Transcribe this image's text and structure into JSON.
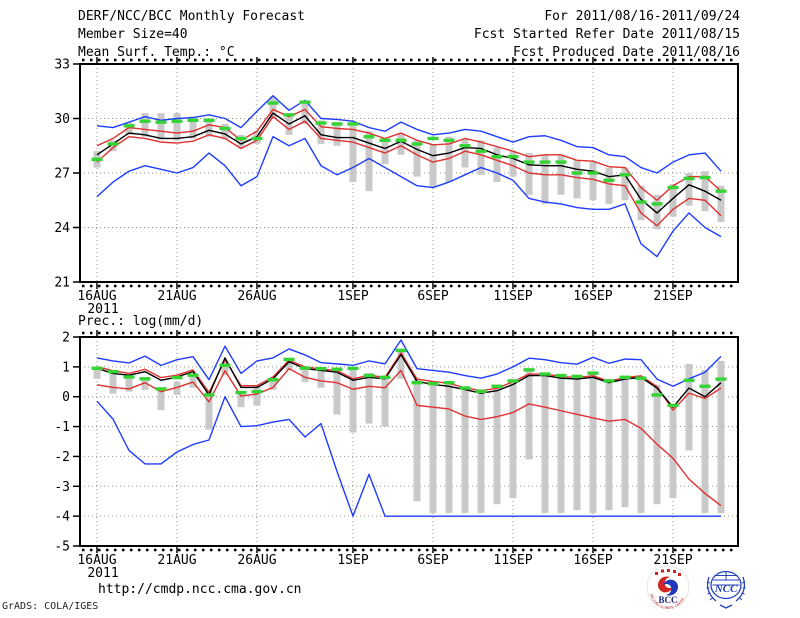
{
  "header": {
    "title": "DERF/NCC/BCC Monthly Forecast",
    "member_size": "Member Size=40",
    "for_range": "For 2011/08/16-2011/09/24",
    "fcst_started": "Fcst Started Refer Date 2011/08/15",
    "fcst_produced": "Fcst Produced Date 2011/08/16"
  },
  "footer": {
    "url": "http://cmdp.ncc.cma.gov.cn",
    "grads_credit": "GrADS: COLA/IGES",
    "bcc_logo_text": "BCC",
    "ncc_logo_text": "NCC",
    "bcc_ring_text": "BEIJING CLIMATE CENTER"
  },
  "chart_data": [
    {
      "name": "temperature",
      "type": "line",
      "title": "Mean Surf. Temp.: °C",
      "xlabel": "",
      "ylabel": "",
      "ylim": [
        21,
        33
      ],
      "yticks": [
        21,
        24,
        27,
        30,
        33
      ],
      "grid": true,
      "legend": "none",
      "year_label": "2011",
      "xtick_labels": [
        "16AUG",
        "21AUG",
        "26AUG",
        "1SEP",
        "6SEP",
        "11SEP",
        "16SEP",
        "21SEP"
      ],
      "xtick_days": [
        0,
        5,
        10,
        16,
        21,
        26,
        31,
        36
      ],
      "x": [
        "16AUG",
        "17AUG",
        "18AUG",
        "19AUG",
        "20AUG",
        "21AUG",
        "22AUG",
        "23AUG",
        "24AUG",
        "25AUG",
        "26AUG",
        "27AUG",
        "28AUG",
        "29AUG",
        "30AUG",
        "31AUG",
        "1SEP",
        "2SEP",
        "3SEP",
        "4SEP",
        "5SEP",
        "6SEP",
        "7SEP",
        "8SEP",
        "9SEP",
        "10SEP",
        "11SEP",
        "12SEP",
        "13SEP",
        "14SEP",
        "15SEP",
        "16SEP",
        "17SEP",
        "18SEP",
        "19SEP",
        "20SEP",
        "21SEP",
        "22SEP",
        "23SEP",
        "24SEP"
      ],
      "series": [
        {
          "name": "blue-upper-bound",
          "style": "line",
          "color": "#1e3cff",
          "values": [
            29.6,
            29.5,
            29.8,
            30.1,
            29.9,
            30.0,
            30.05,
            30.2,
            30.0,
            29.5,
            30.4,
            31.25,
            30.45,
            31.0,
            30.0,
            29.95,
            29.85,
            29.5,
            29.3,
            29.8,
            29.4,
            29.1,
            29.2,
            29.4,
            29.3,
            29.0,
            28.7,
            29.0,
            29.05,
            28.8,
            28.45,
            28.4,
            28.0,
            27.9,
            27.3,
            27.0,
            27.6,
            28.0,
            28.1,
            27.1
          ]
        },
        {
          "name": "blue-lower-bound",
          "style": "line",
          "color": "#1e3cff",
          "values": [
            25.7,
            26.5,
            27.1,
            27.4,
            27.2,
            27.0,
            27.3,
            28.1,
            27.4,
            26.3,
            26.8,
            29.0,
            28.5,
            28.9,
            27.4,
            26.9,
            27.3,
            27.8,
            27.3,
            26.8,
            26.3,
            26.2,
            26.5,
            26.9,
            27.3,
            27.0,
            26.6,
            25.6,
            25.4,
            25.3,
            25.1,
            25.0,
            25.0,
            25.3,
            23.1,
            22.4,
            23.8,
            24.8,
            24.0,
            23.5
          ]
        },
        {
          "name": "red-upper-band",
          "style": "line",
          "color": "#e03030",
          "values": [
            28.5,
            28.9,
            29.5,
            29.4,
            29.3,
            29.2,
            29.3,
            29.65,
            29.5,
            28.8,
            29.3,
            30.5,
            30.1,
            30.5,
            29.55,
            29.45,
            29.4,
            29.2,
            28.9,
            29.2,
            28.8,
            28.55,
            28.6,
            28.9,
            28.7,
            28.45,
            28.2,
            27.9,
            28.0,
            28.0,
            27.7,
            27.65,
            27.35,
            27.3,
            26.2,
            25.5,
            26.3,
            26.8,
            26.8,
            26.0
          ]
        },
        {
          "name": "red-lower-band",
          "style": "line",
          "color": "#e03030",
          "values": [
            27.6,
            28.4,
            29.0,
            28.9,
            28.7,
            28.65,
            28.75,
            29.1,
            28.9,
            28.35,
            28.8,
            30.1,
            29.4,
            29.85,
            28.9,
            28.8,
            28.7,
            28.4,
            28.1,
            28.5,
            28.0,
            27.6,
            27.8,
            28.2,
            28.0,
            27.7,
            27.4,
            27.0,
            26.9,
            26.9,
            26.75,
            26.65,
            26.4,
            26.3,
            24.8,
            24.1,
            25.0,
            25.6,
            25.5,
            24.65
          ]
        },
        {
          "name": "black-central-line",
          "style": "line",
          "color": "#000000",
          "values": [
            28.0,
            28.6,
            29.2,
            29.1,
            28.9,
            28.9,
            29.0,
            29.35,
            29.15,
            28.6,
            29.0,
            30.3,
            29.7,
            30.15,
            29.1,
            28.95,
            28.95,
            28.65,
            28.35,
            28.75,
            28.3,
            27.95,
            28.1,
            28.4,
            28.35,
            28.0,
            27.8,
            27.45,
            27.4,
            27.4,
            27.2,
            27.1,
            26.8,
            26.9,
            25.55,
            24.8,
            25.6,
            26.35,
            26.0,
            25.5
          ]
        },
        {
          "name": "green-dashes",
          "style": "dash",
          "color": "#35d435",
          "values": [
            27.75,
            28.6,
            29.6,
            29.85,
            29.8,
            29.85,
            29.9,
            29.9,
            29.45,
            28.9,
            28.9,
            30.85,
            30.2,
            30.9,
            29.75,
            29.7,
            29.7,
            29.0,
            28.8,
            28.8,
            28.6,
            28.9,
            28.8,
            28.5,
            28.2,
            27.9,
            27.9,
            27.6,
            27.6,
            27.6,
            27.0,
            27.0,
            26.6,
            26.9,
            25.4,
            25.3,
            26.2,
            26.7,
            26.75,
            26.0
          ]
        },
        {
          "name": "gray-spread-bars",
          "style": "bars",
          "color": "#c9c9c9",
          "top": [
            28.2,
            28.8,
            29.8,
            30.3,
            30.3,
            30.3,
            30.1,
            30.0,
            29.7,
            29.1,
            29.3,
            31.2,
            30.3,
            30.8,
            29.9,
            29.8,
            29.6,
            29.3,
            28.9,
            29.2,
            28.8,
            28.6,
            29.0,
            28.9,
            28.8,
            28.4,
            28.2,
            28.1,
            28.0,
            28.0,
            27.7,
            27.6,
            27.3,
            27.3,
            26.3,
            25.8,
            26.4,
            27.0,
            27.1,
            26.3
          ],
          "bottom": [
            27.3,
            28.2,
            29.1,
            29.0,
            28.85,
            28.8,
            28.9,
            29.0,
            28.85,
            28.4,
            28.6,
            30.0,
            29.1,
            29.7,
            28.6,
            28.5,
            26.5,
            26.0,
            27.5,
            28.0,
            26.8,
            26.2,
            26.5,
            27.3,
            26.9,
            26.5,
            26.8,
            25.8,
            25.3,
            25.8,
            25.6,
            25.5,
            25.3,
            25.5,
            24.4,
            23.9,
            24.6,
            25.2,
            24.9,
            24.3
          ]
        }
      ]
    },
    {
      "name": "precipitation",
      "type": "line",
      "title": "Prec.: log(mm/d)",
      "xlabel": "",
      "ylabel": "",
      "ylim": [
        -5,
        2
      ],
      "yticks": [
        -5,
        -4,
        -3,
        -2,
        -1,
        0,
        1,
        2
      ],
      "grid": true,
      "legend": "none",
      "year_label": "2011",
      "xtick_labels": [
        "16AUG",
        "21AUG",
        "26AUG",
        "1SEP",
        "6SEP",
        "11SEP",
        "16SEP",
        "21SEP"
      ],
      "xtick_days": [
        0,
        5,
        10,
        16,
        21,
        26,
        31,
        36
      ],
      "x": [
        "16AUG",
        "17AUG",
        "18AUG",
        "19AUG",
        "20AUG",
        "21AUG",
        "22AUG",
        "23AUG",
        "24AUG",
        "25AUG",
        "26AUG",
        "27AUG",
        "28AUG",
        "29AUG",
        "30AUG",
        "31AUG",
        "1SEP",
        "2SEP",
        "3SEP",
        "4SEP",
        "5SEP",
        "6SEP",
        "7SEP",
        "8SEP",
        "9SEP",
        "10SEP",
        "11SEP",
        "12SEP",
        "13SEP",
        "14SEP",
        "15SEP",
        "16SEP",
        "17SEP",
        "18SEP",
        "19SEP",
        "20SEP",
        "21SEP",
        "22SEP",
        "23SEP",
        "24SEP"
      ],
      "series": [
        {
          "name": "blue-upper-bound",
          "style": "line",
          "color": "#1e3cff",
          "values": [
            1.3,
            1.2,
            1.13,
            1.36,
            1.05,
            1.24,
            1.34,
            0.57,
            1.69,
            0.78,
            1.2,
            1.3,
            1.6,
            1.4,
            1.14,
            1.1,
            1.05,
            1.2,
            1.1,
            1.9,
            0.94,
            0.88,
            0.82,
            0.71,
            0.62,
            0.76,
            1.0,
            1.29,
            1.24,
            1.14,
            1.09,
            1.32,
            1.12,
            1.26,
            1.24,
            0.59,
            0.35,
            0.6,
            0.82,
            1.35
          ]
        },
        {
          "name": "blue-lower-bound",
          "style": "line",
          "color": "#1e3cff",
          "values": [
            -0.15,
            -0.75,
            -1.8,
            -2.25,
            -2.25,
            -1.85,
            -1.6,
            -1.45,
            0.0,
            -1.0,
            -0.97,
            -0.85,
            -0.76,
            -1.35,
            -0.9,
            -2.5,
            -4.0,
            -2.6,
            -4.0,
            -4.0,
            -4.0,
            -4.0,
            -4.0,
            -4.0,
            -4.0,
            -4.0,
            -4.0,
            -4.0,
            -4.0,
            -4.0,
            -4.0,
            -4.0,
            -4.0,
            -4.0,
            -4.0,
            -4.0,
            -4.0,
            -4.0,
            -4.0,
            -4.0
          ]
        },
        {
          "name": "red-upper-band",
          "style": "line",
          "color": "#e03030",
          "values": [
            1.0,
            0.87,
            0.78,
            0.92,
            0.64,
            0.72,
            0.9,
            0.14,
            1.24,
            0.37,
            0.37,
            0.66,
            1.22,
            1.0,
            0.92,
            0.88,
            0.6,
            0.72,
            0.65,
            1.47,
            0.59,
            0.51,
            0.45,
            0.3,
            0.2,
            0.28,
            0.5,
            0.76,
            0.76,
            0.68,
            0.64,
            0.7,
            0.52,
            0.64,
            0.7,
            0.34,
            -0.45,
            0.12,
            -0.06,
            0.29
          ]
        },
        {
          "name": "red-lower-band",
          "style": "line",
          "color": "#e03030",
          "values": [
            0.4,
            0.31,
            0.26,
            0.47,
            0.17,
            0.31,
            0.49,
            -0.17,
            0.87,
            0.02,
            0.09,
            0.31,
            0.94,
            0.65,
            0.53,
            0.47,
            0.25,
            0.35,
            0.3,
            0.88,
            -0.29,
            -0.35,
            -0.41,
            -0.65,
            -0.76,
            -0.67,
            -0.53,
            -0.24,
            -0.35,
            -0.47,
            -0.59,
            -0.71,
            -0.82,
            -0.76,
            -1.06,
            -1.59,
            -2.06,
            -2.76,
            -3.24,
            -3.65
          ]
        },
        {
          "name": "black-central-line",
          "style": "line",
          "color": "#000000",
          "values": [
            0.95,
            0.78,
            0.72,
            0.84,
            0.55,
            0.66,
            0.84,
            0.06,
            1.3,
            0.31,
            0.31,
            0.6,
            1.17,
            0.94,
            0.88,
            0.82,
            0.55,
            0.65,
            0.6,
            1.41,
            0.51,
            0.41,
            0.35,
            0.24,
            0.12,
            0.2,
            0.41,
            0.71,
            0.71,
            0.62,
            0.59,
            0.65,
            0.47,
            0.59,
            0.65,
            0.29,
            -0.35,
            0.29,
            0.0,
            0.47
          ]
        },
        {
          "name": "green-dashes",
          "style": "dash",
          "color": "#35d435",
          "values": [
            0.95,
            0.84,
            0.66,
            0.6,
            0.26,
            0.64,
            0.72,
            0.06,
            1.05,
            0.14,
            0.17,
            0.57,
            1.25,
            0.96,
            0.94,
            0.92,
            0.95,
            0.71,
            0.65,
            1.55,
            0.47,
            0.44,
            0.47,
            0.29,
            0.18,
            0.35,
            0.53,
            0.9,
            0.76,
            0.71,
            0.68,
            0.79,
            0.53,
            0.65,
            0.62,
            0.06,
            -0.29,
            0.55,
            0.35,
            0.59
          ]
        },
        {
          "name": "gray-spread-bars",
          "style": "bars",
          "color": "#c9c9c9",
          "top": [
            1.0,
            0.83,
            0.7,
            0.66,
            0.3,
            0.5,
            0.78,
            0.23,
            1.17,
            0.17,
            0.37,
            0.66,
            1.3,
            1.0,
            0.94,
            0.9,
            0.95,
            0.8,
            0.7,
            1.5,
            0.6,
            0.5,
            0.45,
            0.35,
            0.25,
            0.3,
            0.5,
            0.94,
            0.8,
            0.75,
            0.7,
            0.75,
            0.6,
            0.7,
            0.7,
            0.4,
            -0.3,
            1.1,
            0.9,
            1.2
          ],
          "bottom": [
            0.6,
            0.1,
            0.17,
            0.23,
            -0.45,
            0.06,
            0.3,
            -1.1,
            0.72,
            -0.35,
            -0.3,
            0.23,
            0.9,
            0.5,
            0.3,
            -0.6,
            -1.2,
            -0.9,
            -1.0,
            0.6,
            -3.5,
            -3.9,
            -3.9,
            -3.9,
            -3.9,
            -3.6,
            -3.4,
            -2.1,
            -3.9,
            -3.9,
            -3.8,
            -3.9,
            -3.8,
            -3.7,
            -3.9,
            -3.6,
            -3.4,
            -1.8,
            -3.9,
            -3.9
          ]
        }
      ]
    }
  ]
}
